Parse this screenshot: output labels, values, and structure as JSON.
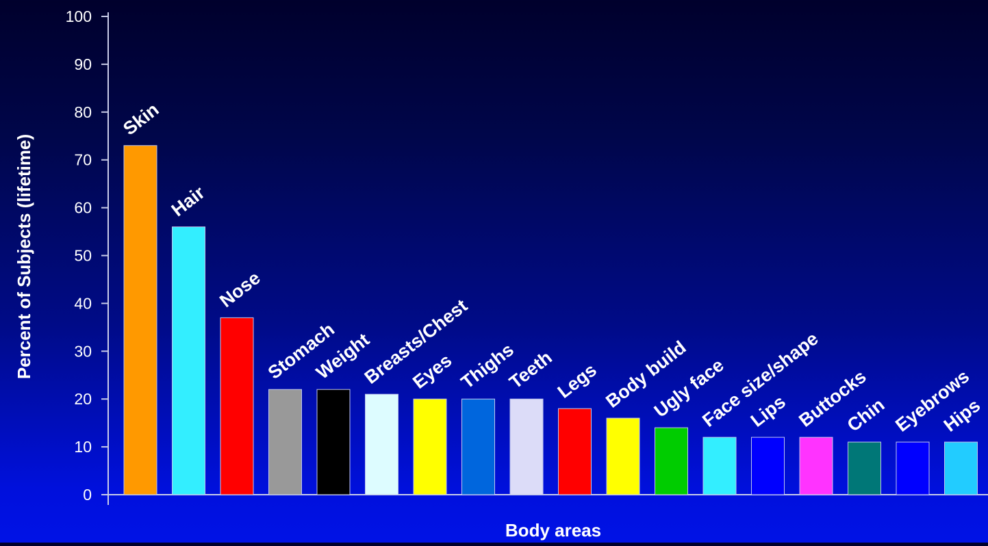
{
  "chart_data": {
    "type": "bar",
    "title": "",
    "xlabel": "Body areas",
    "ylabel": "Percent of Subjects (lifetime)",
    "ylim": [
      0,
      100
    ],
    "yticks": [
      0,
      10,
      20,
      30,
      40,
      50,
      60,
      70,
      80,
      90,
      100
    ],
    "categories": [
      "Skin",
      "Hair",
      "Nose",
      "Stomach",
      "Weight",
      "Breasts/Chest",
      "Eyes",
      "Thighs",
      "Teeth",
      "Legs",
      "Body build",
      "Ugly face",
      "Face size/shape",
      "Lips",
      "Buttocks",
      "Chin",
      "Eyebrows",
      "Hips"
    ],
    "values": [
      73,
      56,
      37,
      22,
      22,
      21,
      20,
      20,
      20,
      18,
      16,
      14,
      12,
      12,
      12,
      11,
      11,
      11
    ],
    "colors": [
      "#ff9900",
      "#33eeff",
      "#ff0000",
      "#999999",
      "#000000",
      "#ddfcff",
      "#ffff00",
      "#0066dd",
      "#dcdcf8",
      "#ff0000",
      "#ffff00",
      "#00cc00",
      "#33eeff",
      "#0000ff",
      "#ff33ff",
      "#007777",
      "#0000ff",
      "#22ccff"
    ],
    "grid": false,
    "legend": "none"
  }
}
